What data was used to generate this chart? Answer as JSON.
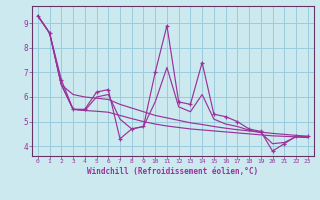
{
  "xlabel": "Windchill (Refroidissement éolien,°C)",
  "background_color": "#cce9f0",
  "grid_color": "#99ccdd",
  "line_color": "#993399",
  "spine_color": "#663366",
  "x_data": [
    0,
    1,
    2,
    3,
    4,
    5,
    6,
    7,
    8,
    9,
    10,
    11,
    12,
    13,
    14,
    15,
    16,
    17,
    18,
    19,
    20,
    21,
    22,
    23
  ],
  "y_main": [
    9.3,
    8.6,
    6.7,
    5.5,
    5.5,
    6.2,
    6.3,
    4.3,
    4.7,
    4.8,
    7.0,
    8.9,
    5.8,
    5.7,
    7.4,
    5.3,
    5.2,
    5.0,
    4.7,
    4.6,
    3.8,
    4.1,
    4.4,
    4.4
  ],
  "y_trend1": [
    9.3,
    8.6,
    6.5,
    6.1,
    6.0,
    5.95,
    5.9,
    5.7,
    5.55,
    5.4,
    5.25,
    5.15,
    5.05,
    4.95,
    4.88,
    4.8,
    4.73,
    4.67,
    4.62,
    4.57,
    4.52,
    4.48,
    4.44,
    4.4
  ],
  "y_trend2": [
    9.3,
    8.6,
    6.5,
    5.5,
    5.45,
    5.42,
    5.38,
    5.25,
    5.12,
    5.0,
    4.9,
    4.82,
    4.76,
    4.7,
    4.66,
    4.62,
    4.58,
    4.54,
    4.5,
    4.46,
    4.42,
    4.4,
    4.38,
    4.35
  ],
  "y_trend3": [
    9.3,
    8.6,
    6.5,
    5.5,
    5.45,
    6.0,
    6.1,
    5.1,
    4.7,
    4.8,
    5.8,
    7.2,
    5.6,
    5.4,
    6.1,
    5.1,
    4.9,
    4.8,
    4.65,
    4.55,
    4.1,
    4.15,
    4.38,
    4.35
  ],
  "xlim": [
    -0.5,
    23.5
  ],
  "ylim": [
    3.6,
    9.7
  ],
  "yticks": [
    4,
    5,
    6,
    7,
    8,
    9
  ],
  "xticks": [
    0,
    1,
    2,
    3,
    4,
    5,
    6,
    7,
    8,
    9,
    10,
    11,
    12,
    13,
    14,
    15,
    16,
    17,
    18,
    19,
    20,
    21,
    22,
    23
  ]
}
